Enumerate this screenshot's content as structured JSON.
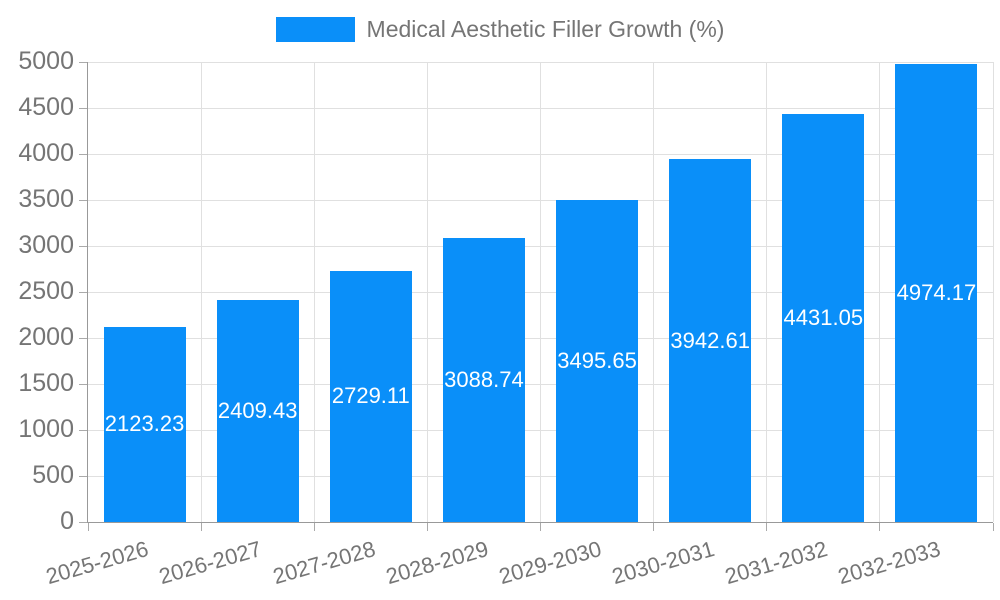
{
  "legend": {
    "label": "Medical Aesthetic Filler Growth (%)"
  },
  "colors": {
    "bar": "#0a8ff9",
    "axis_label": "#757575",
    "grid": "#e0e0e0",
    "axis_line": "#999999",
    "tick": "#aaaaaa",
    "value_label": "#ffffff",
    "background": "#ffffff"
  },
  "chart_data": {
    "type": "bar",
    "title": "Medical Aesthetic Filler Growth (%)",
    "categories": [
      "2025-2026",
      "2026-2027",
      "2027-2028",
      "2028-2029",
      "2029-2030",
      "2030-2031",
      "2031-2032",
      "2032-2033"
    ],
    "values": [
      2123.23,
      2409.43,
      2729.11,
      3088.74,
      3495.65,
      3942.61,
      4431.05,
      4974.17
    ],
    "value_labels": [
      "2123.23",
      "2409.43",
      "2729.11",
      "3088.74",
      "3495.65",
      "3942.61",
      "4431.05",
      "4974.17"
    ],
    "xlabel": "",
    "ylabel": "",
    "ylim": [
      0,
      5000
    ],
    "yticks": [
      0,
      500,
      1000,
      1500,
      2000,
      2500,
      3000,
      3500,
      4000,
      4500,
      5000
    ],
    "grid": true,
    "legend_position": "top-center",
    "x_label_rotation_deg": -16
  }
}
